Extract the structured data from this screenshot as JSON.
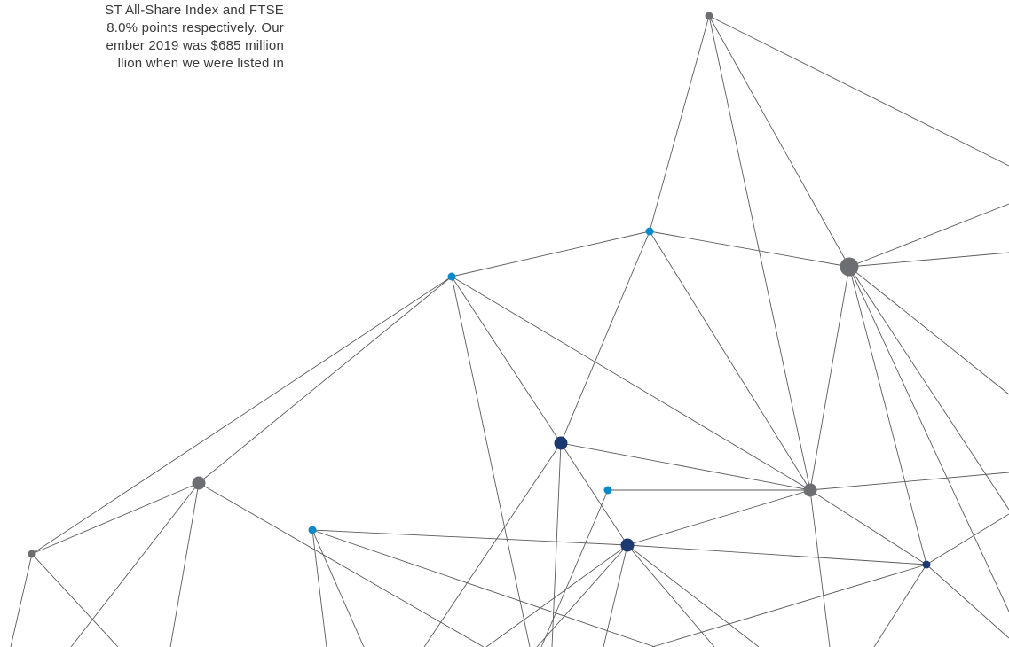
{
  "text_lines": [
    "ST All-Share Index and FTSE",
    "8.0% points respectively. Our",
    "ember 2019 was $685 million",
    "llion when we were listed in"
  ],
  "colors": {
    "text": "#3a3a3a",
    "edge": "#5b5b5b",
    "node_grey": "#6d6e71",
    "node_navy": "#1c3a72",
    "node_blue": "#0a8ac9"
  },
  "network": {
    "nodes": [
      {
        "id": "n-top",
        "type": "grey",
        "size": "small"
      },
      {
        "id": "n-blue-a",
        "type": "blue",
        "size": "small"
      },
      {
        "id": "n-blue-b",
        "type": "blue",
        "size": "small"
      },
      {
        "id": "n-grey-big",
        "type": "grey",
        "size": "large"
      },
      {
        "id": "n-navy-a",
        "type": "navy",
        "size": "medium"
      },
      {
        "id": "n-blue-c",
        "type": "blue",
        "size": "small"
      },
      {
        "id": "n-grey-mid",
        "type": "grey",
        "size": "medium"
      },
      {
        "id": "n-grey-left",
        "type": "grey",
        "size": "medium"
      },
      {
        "id": "n-blue-d",
        "type": "blue",
        "size": "small"
      },
      {
        "id": "n-navy-b",
        "type": "navy",
        "size": "medium"
      },
      {
        "id": "n-navy-small",
        "type": "navy",
        "size": "small"
      },
      {
        "id": "n-grey-far-left",
        "type": "grey",
        "size": "small"
      }
    ]
  }
}
